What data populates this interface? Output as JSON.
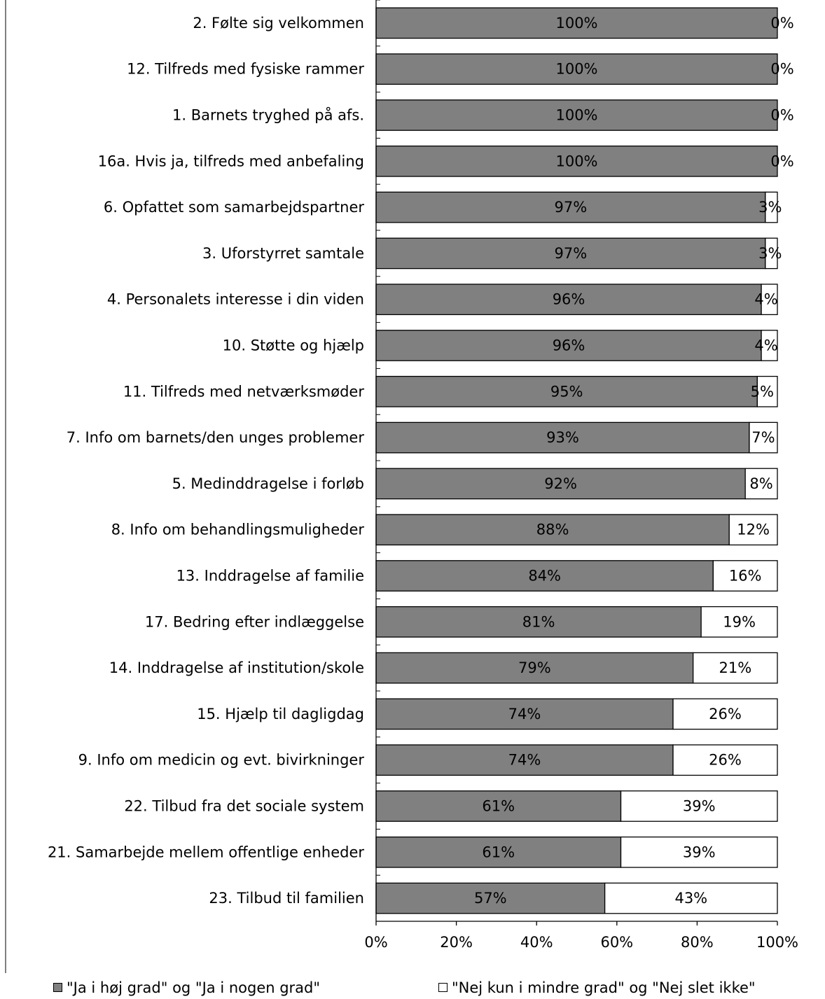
{
  "chart_data": {
    "type": "bar",
    "orientation": "horizontal",
    "stacked": true,
    "categories": [
      "2. Følte sig velkommen",
      "12. Tilfreds med fysiske rammer",
      "1. Barnets tryghed på afs.",
      "16a. Hvis ja, tilfreds med anbefaling",
      "6. Opfattet som samarbejdspartner",
      "3. Uforstyrret samtale",
      "4. Personalets interesse i din viden",
      "10. Støtte og hjælp",
      "11. Tilfreds med netværksmøder",
      "7. Info om barnets/den unges problemer",
      "5. Medinddragelse i forløb",
      "8. Info om behandlingsmuligheder",
      "13. Inddragelse af familie",
      "17. Bedring efter indlæggelse",
      "14. Inddragelse af institution/skole",
      "15. Hjælp til dagligdag",
      "9. Info om medicin og evt. bivirkninger",
      "22. Tilbud fra det sociale system",
      "21. Samarbejde mellem offentlige enheder",
      "23. Tilbud til familien"
    ],
    "series": [
      {
        "name": "\"Ja i høj grad\" og \"Ja i nogen grad\"",
        "color": "#808080",
        "values": [
          100,
          100,
          100,
          100,
          97,
          97,
          96,
          96,
          95,
          93,
          92,
          88,
          84,
          81,
          79,
          74,
          74,
          61,
          61,
          57
        ],
        "labels": [
          "100%",
          "100%",
          "100%",
          "100%",
          "97%",
          "97%",
          "96%",
          "96%",
          "95%",
          "93%",
          "92%",
          "88%",
          "84%",
          "81%",
          "79%",
          "74%",
          "74%",
          "61%",
          "61%",
          "57%"
        ]
      },
      {
        "name": "\"Nej kun i mindre grad\" og \"Nej slet ikke\"",
        "color": "#ffffff",
        "values": [
          0,
          0,
          0,
          0,
          3,
          3,
          4,
          4,
          5,
          7,
          8,
          12,
          16,
          19,
          21,
          26,
          26,
          39,
          39,
          43
        ],
        "labels": [
          "0%",
          "0%",
          "0%",
          "0%",
          "3%",
          "3%",
          "4%",
          "4%",
          "5%",
          "7%",
          "8%",
          "12%",
          "16%",
          "19%",
          "21%",
          "26%",
          "26%",
          "39%",
          "39%",
          "43%"
        ]
      }
    ],
    "xlim": [
      0,
      100
    ],
    "x_ticks": [
      "0%",
      "20%",
      "40%",
      "60%",
      "80%",
      "100%"
    ],
    "grid": false,
    "legend_position": "bottom"
  }
}
